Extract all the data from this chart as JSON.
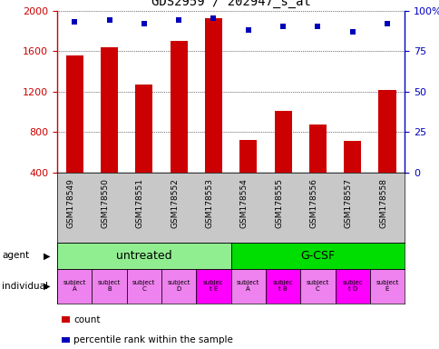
{
  "title": "GDS2959 / 202947_s_at",
  "samples": [
    "GSM178549",
    "GSM178550",
    "GSM178551",
    "GSM178552",
    "GSM178553",
    "GSM178554",
    "GSM178555",
    "GSM178556",
    "GSM178557",
    "GSM178558"
  ],
  "counts": [
    1560,
    1640,
    1270,
    1700,
    1920,
    720,
    1010,
    880,
    710,
    1220
  ],
  "percentile_ranks": [
    93,
    94,
    92,
    94,
    95,
    88,
    90,
    90,
    87,
    92
  ],
  "ylim_left": [
    400,
    2000
  ],
  "ylim_right": [
    0,
    100
  ],
  "yticks_left": [
    400,
    800,
    1200,
    1600,
    2000
  ],
  "yticks_right": [
    0,
    25,
    50,
    75,
    100
  ],
  "agent_groups": [
    {
      "label": "untreated",
      "start": 0,
      "end": 5,
      "color": "#90EE90"
    },
    {
      "label": "G-CSF",
      "start": 5,
      "end": 10,
      "color": "#00DD00"
    }
  ],
  "individual_labels": [
    "subject\nA",
    "subject\nB",
    "subject\nC",
    "subject\nD",
    "subjec\nt E",
    "subject\nA",
    "subjec\nt B",
    "subject\nC",
    "subjec\nt D",
    "subject\nE"
  ],
  "individual_colors_bg": [
    "#EE82EE",
    "#EE82EE",
    "#EE82EE",
    "#EE82EE",
    "#FF00FF",
    "#EE82EE",
    "#FF00FF",
    "#EE82EE",
    "#FF00FF",
    "#EE82EE"
  ],
  "bar_color": "#CC0000",
  "dot_color": "#0000BB",
  "label_color_left": "#CC0000",
  "label_color_right": "#0000BB",
  "sample_bg_color": "#C8C8C8",
  "figure_bg": "#FFFFFF",
  "bar_bottom": 400
}
